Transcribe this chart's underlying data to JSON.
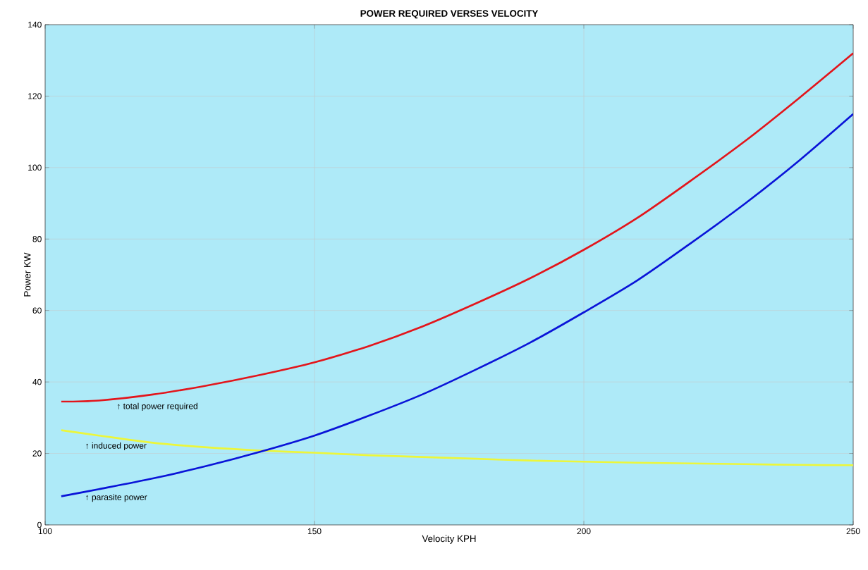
{
  "chart_data": {
    "type": "line",
    "title": "POWER REQUIRED VERSES VELOCITY",
    "xlabel": "Velocity KPH",
    "ylabel": "Power KW",
    "x": [
      103,
      110,
      120,
      130,
      140,
      150,
      160,
      170,
      180,
      190,
      200,
      210,
      220,
      230,
      240,
      250
    ],
    "series": [
      {
        "color": "#e3151b",
        "values": [
          34.5,
          34.8,
          36.5,
          39,
          42,
          45.5,
          50,
          55.5,
          62,
          69,
          77,
          86,
          96.5,
          107.5,
          119.5,
          132
        ]
      },
      {
        "color": "#ecf63a",
        "values": [
          26.5,
          25,
          23,
          21.7,
          20.8,
          20.2,
          19.5,
          19,
          18.5,
          18,
          17.7,
          17.4,
          17.2,
          17,
          16.8,
          16.7
        ]
      },
      {
        "color": "#0a14d8",
        "values": [
          8,
          10,
          13,
          16.5,
          20.5,
          25,
          30.5,
          36.5,
          43.5,
          51,
          59.5,
          68.5,
          79,
          90,
          102,
          115
        ]
      }
    ],
    "annotations": [
      "↑ total power required",
      "↑ induced power",
      "↑ parasite power"
    ],
    "xlim": [
      100,
      250
    ],
    "ylim": [
      0,
      140
    ],
    "xticks": [
      100,
      150,
      200,
      250
    ],
    "yticks": [
      0,
      20,
      40,
      60,
      80,
      100,
      120,
      140
    ],
    "grid": true,
    "marker": "none",
    "line_style": "solid"
  }
}
